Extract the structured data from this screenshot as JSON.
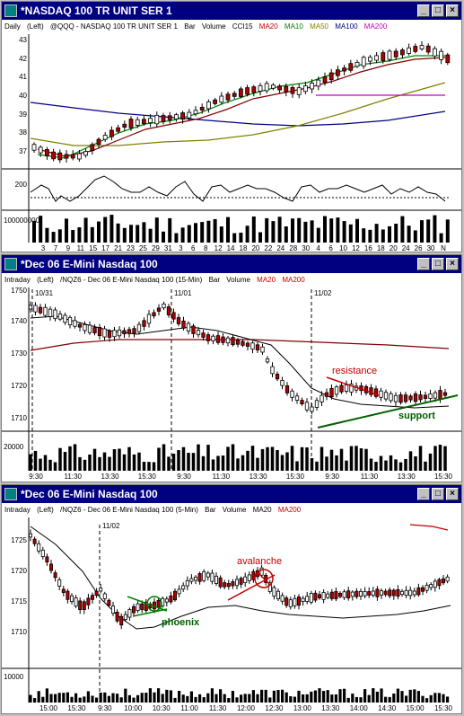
{
  "windows": [
    {
      "title": "*NASDAQ 100 TR UNIT SER 1",
      "info": [
        "Daily",
        "(Left)",
        "@QQQ - NASDAQ 100 TR UNIT SER 1",
        "Bar",
        "Volume",
        "CCI15",
        "MA20",
        "MA10",
        "MA50",
        "MA100",
        "MA200"
      ],
      "y_ticks": [
        "43",
        "42",
        "41",
        "40",
        "39",
        "38",
        "37"
      ],
      "cci_ticks": [
        "200"
      ],
      "volume_tick": "100000000",
      "x_ticks": [
        "3",
        "7",
        "9",
        "11",
        "15",
        "17",
        "21",
        "23",
        "25",
        "29",
        "31",
        "3",
        "6",
        "8",
        "12",
        "14",
        "18",
        "20",
        "22",
        "24",
        "28",
        "30",
        "4",
        "6",
        "10",
        "12",
        "16",
        "18",
        "20",
        "24",
        "26",
        "30",
        "N"
      ]
    },
    {
      "title": "*Dec 06  E-Mini Nasdaq 100",
      "info": [
        "Intraday",
        "(Left)",
        "/NQZ6 - Dec 06  E-Mini Nasdaq 100 (15-Min)",
        "Bar",
        "Volume",
        "MA20",
        "MA200"
      ],
      "y_ticks": [
        "1750",
        "1740",
        "1730",
        "1720",
        "1710"
      ],
      "volume_tick": "20000",
      "date_markers": [
        "10/31",
        "11/01",
        "11/02"
      ],
      "annotations": {
        "resistance": "resistance",
        "support": "support"
      },
      "x_ticks": [
        "9:30",
        "11:30",
        "13:30",
        "15:30",
        "9:30",
        "11:30",
        "13:30",
        "15:30",
        "9:30",
        "11:30",
        "13:30",
        "15:30"
      ]
    },
    {
      "title": "*Dec 06  E-Mini Nasdaq 100",
      "info": [
        "Intraday",
        "(Left)",
        "/NQZ6 - Dec 06  E-Mini Nasdaq 100 (5-Min)",
        "Bar",
        "Volume",
        "MA20",
        "MA200"
      ],
      "y_ticks": [
        "1725",
        "1720",
        "1715",
        "1710"
      ],
      "volume_tick": "10000",
      "date_markers": [
        "11/02"
      ],
      "annotations": {
        "avalanche": "avalanche",
        "phoenix": "phoenix"
      },
      "x_ticks": [
        "15:00",
        "15:30",
        "9:30",
        "10:00",
        "10:30",
        "11:00",
        "11:30",
        "12:00",
        "12:30",
        "13:00",
        "13:30",
        "14:00",
        "14:30",
        "15:00",
        "15:30"
      ]
    }
  ],
  "controls": {
    "minimize": "_",
    "maximize": "□",
    "close": "×"
  },
  "colors": {
    "titlebar": "#000080",
    "ma20": "#800000",
    "ma10": "#008000",
    "ma50": "#808000",
    "ma100": "#000080",
    "ma200": "#c000c0",
    "annotation_red": "#c00000",
    "annotation_green": "#006000"
  }
}
